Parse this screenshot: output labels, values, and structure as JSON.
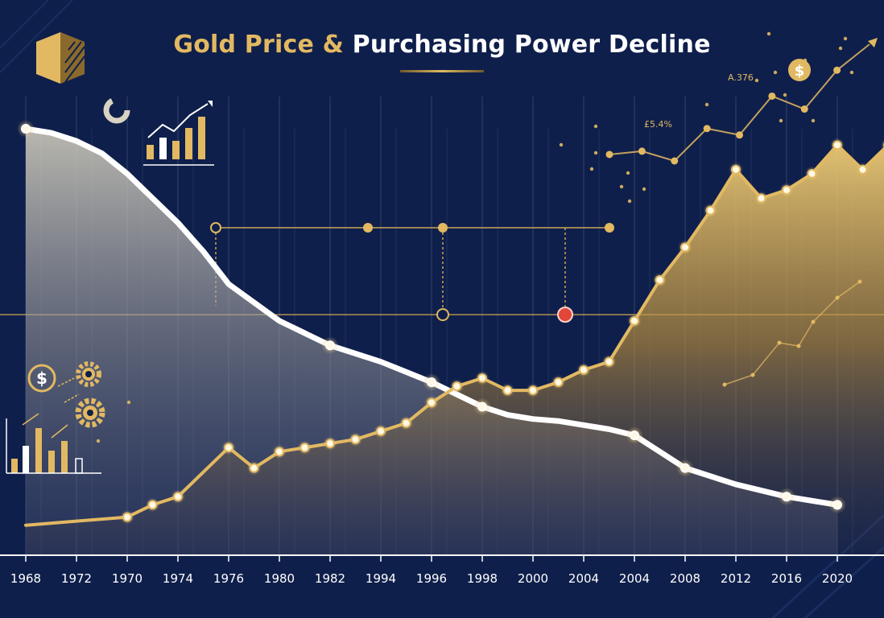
{
  "chart_data": {
    "type": "line",
    "title_part1": "Gold Price &",
    "title_part2": "Purchasing Power Decline",
    "x_tick_labels": [
      "1968",
      "1972",
      "1970",
      "1974",
      "1976",
      "1980",
      "1982",
      "1994",
      "1996",
      "1998",
      "2000",
      "2004",
      "2004",
      "2008",
      "2012",
      "2016",
      "2020"
    ],
    "annotations": [
      "A.376",
      "£5.4%"
    ],
    "series": [
      {
        "key": "purchasing_power",
        "color": "#ffffff",
        "points": [
          [
            0,
            100
          ],
          [
            0.5,
            99
          ],
          [
            1,
            97
          ],
          [
            1.5,
            94
          ],
          [
            2,
            89
          ],
          [
            2.5,
            83
          ],
          [
            3,
            77
          ],
          [
            3.5,
            70
          ],
          [
            4,
            62
          ],
          [
            5,
            53
          ],
          [
            6,
            47
          ],
          [
            7,
            43
          ],
          [
            8,
            38
          ],
          [
            8.5,
            35
          ],
          [
            9,
            32
          ],
          [
            9.5,
            30
          ],
          [
            10,
            29
          ],
          [
            10.5,
            28.5
          ],
          [
            11,
            27.5
          ],
          [
            11.5,
            26.5
          ],
          [
            12,
            25
          ],
          [
            12.5,
            21
          ],
          [
            13,
            17
          ],
          [
            14,
            13
          ],
          [
            15,
            10
          ],
          [
            16,
            8
          ]
        ],
        "markers": [
          0,
          10,
          12,
          14,
          20,
          22,
          24,
          25
        ]
      },
      {
        "key": "gold_price",
        "color": "#e2b962",
        "points": [
          [
            0,
            3
          ],
          [
            1,
            4
          ],
          [
            2,
            5
          ],
          [
            2.5,
            8
          ],
          [
            3,
            10
          ],
          [
            4,
            22
          ],
          [
            4.5,
            17
          ],
          [
            5,
            21
          ],
          [
            5.5,
            22
          ],
          [
            6,
            23
          ],
          [
            6.5,
            24
          ],
          [
            7,
            26
          ],
          [
            7.5,
            28
          ],
          [
            8,
            33
          ],
          [
            8.5,
            37
          ],
          [
            9,
            39
          ],
          [
            9.5,
            36
          ],
          [
            10,
            36
          ],
          [
            10.5,
            38
          ],
          [
            11,
            41
          ],
          [
            11.5,
            43
          ],
          [
            12,
            53
          ],
          [
            12.5,
            63
          ],
          [
            13,
            71
          ],
          [
            13.5,
            80
          ],
          [
            14,
            90
          ],
          [
            14.5,
            83
          ],
          [
            15,
            85
          ],
          [
            15.5,
            89
          ],
          [
            16,
            96
          ],
          [
            16.5,
            90
          ],
          [
            17,
            96
          ],
          [
            17.5,
            100
          ]
        ],
        "markers": [
          2,
          3,
          4,
          5,
          6,
          7,
          8,
          9,
          10,
          11,
          12,
          13,
          14,
          15,
          16,
          17,
          18,
          19,
          20,
          21,
          22,
          23,
          24,
          25,
          26,
          27,
          28,
          29,
          30,
          31
        ]
      },
      {
        "key": "upper_trend",
        "color": "#e2b962",
        "points": [
          [
            0,
            72
          ],
          [
            1,
            73
          ],
          [
            2,
            70
          ],
          [
            3,
            80
          ],
          [
            4,
            78
          ],
          [
            5,
            90
          ],
          [
            6,
            86
          ],
          [
            7,
            98
          ],
          [
            8,
            106
          ]
        ],
        "markers": [
          0,
          1,
          2,
          3,
          4,
          5,
          6,
          7
        ]
      }
    ],
    "ylim": [
      0,
      100
    ],
    "grid": true
  },
  "colors": {
    "background": "#0f1f4b",
    "gold": "#e2b962",
    "white": "#ffffff",
    "accent_red": "#e0463a"
  },
  "icons": [
    "logo-mark-icon",
    "donut-icon",
    "bar-growth-icon",
    "dollar-coin-icon",
    "gear-icon",
    "bar-chart-icon",
    "dollar-coin-icon"
  ]
}
